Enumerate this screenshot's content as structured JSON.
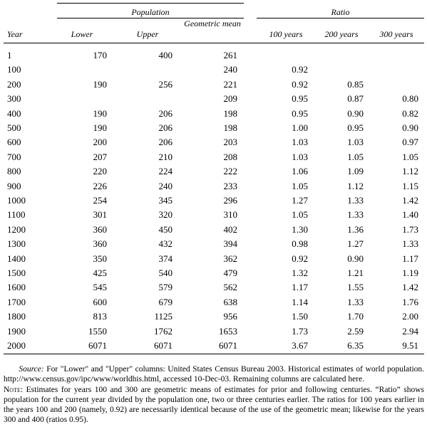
{
  "table": {
    "group_headers": [
      "Population",
      "Ratio"
    ],
    "columns": [
      "Year",
      "Lower",
      "Upper",
      "Geometric mean",
      "100 years",
      "200 years",
      "300 years"
    ],
    "rows": [
      [
        "1",
        "170",
        "400",
        "261",
        null,
        null,
        null
      ],
      [
        "100",
        null,
        null,
        "240",
        "0.92",
        null,
        null
      ],
      [
        "200",
        "190",
        "256",
        "221",
        "0.92",
        "0.85",
        null
      ],
      [
        "300",
        null,
        null,
        "209",
        "0.95",
        "0.87",
        "0.80"
      ],
      [
        "400",
        "190",
        "206",
        "198",
        "0.95",
        "0.90",
        "0.82"
      ],
      [
        "500",
        "190",
        "206",
        "198",
        "1.00",
        "0.95",
        "0.90"
      ],
      [
        "600",
        "200",
        "206",
        "203",
        "1.03",
        "1.03",
        "0.97"
      ],
      [
        "700",
        "207",
        "210",
        "208",
        "1.03",
        "1.05",
        "1.05"
      ],
      [
        "800",
        "220",
        "224",
        "222",
        "1.06",
        "1.09",
        "1.12"
      ],
      [
        "900",
        "226",
        "240",
        "233",
        "1.05",
        "1.12",
        "1.15"
      ],
      [
        "1000",
        "254",
        "345",
        "296",
        "1.27",
        "1.33",
        "1.42"
      ],
      [
        "1100",
        "301",
        "320",
        "310",
        "1.05",
        "1.33",
        "1.40"
      ],
      [
        "1200",
        "360",
        "450",
        "402",
        "1.30",
        "1.36",
        "1.73"
      ],
      [
        "1300",
        "360",
        "432",
        "394",
        "0.98",
        "1.27",
        "1.33"
      ],
      [
        "1400",
        "350",
        "374",
        "362",
        "0.92",
        "0.90",
        "1.17"
      ],
      [
        "1500",
        "425",
        "540",
        "479",
        "1.32",
        "1.21",
        "1.19"
      ],
      [
        "1600",
        "545",
        "579",
        "562",
        "1.17",
        "1.55",
        "1.42"
      ],
      [
        "1700",
        "600",
        "679",
        "638",
        "1.14",
        "1.33",
        "1.76"
      ],
      [
        "1800",
        "813",
        "1125",
        "956",
        "1.50",
        "1.70",
        "2.00"
      ],
      [
        "1900",
        "1550",
        "1762",
        "1653",
        "1.73",
        "2.59",
        "2.94"
      ],
      [
        "2000",
        "6071",
        "6071",
        "6071",
        "3.67",
        "6.35",
        "9.51"
      ]
    ]
  },
  "notes": {
    "source_label": "Source:",
    "source_text": "For \"Lower\" and \"Upper\" columns: United States Census Bureau 2003. Historical estimates of world population. http://www.census.gov/ipc/www/worldhis.html, accessed 10-Dec-03. Remaining columns are calculated here.",
    "note_label": "Note:",
    "note_text": "Estimates for years 100 and 300 are geometric means of estimates for prior and following centuries. “Ratio” shows population for the current year divided by the population one, two or three centuries earlier. The ratios for 100 years earlier in the years 100 and 200 (namely, 0.92) are necessarily identical because of the use of the geometric mean; likewise for the years 300 and 400 (ratios 0.95)."
  }
}
